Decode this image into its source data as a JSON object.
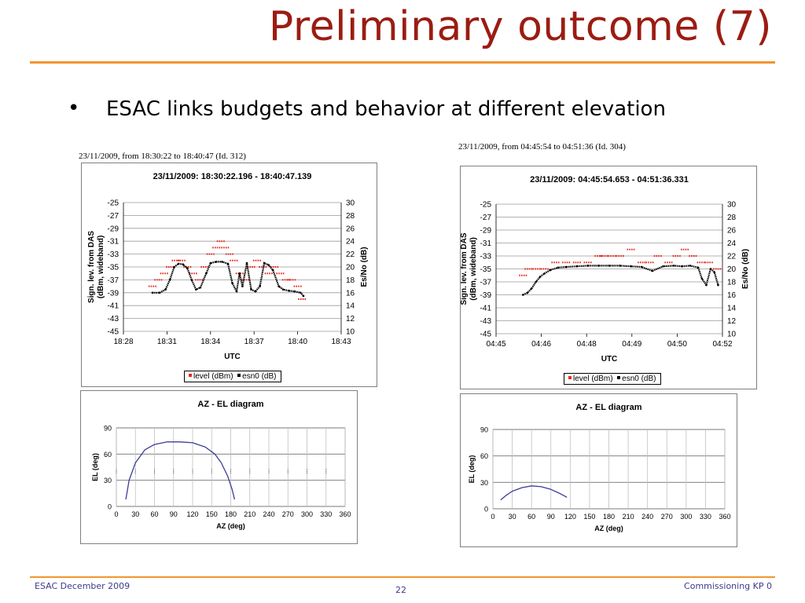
{
  "slide": {
    "title": "Preliminary outcome (7)",
    "bullet_marker": "•",
    "bullet_text": "ESAC links budgets and behavior at different elevation",
    "footer_left": "ESAC December 2009",
    "footer_center": "22",
    "footer_right": "Commissioning KP 0",
    "accent_color": "#f0962e",
    "title_color": "#9b1c12"
  },
  "captions": {
    "left": "23/11/2009, from 18:30:22 to 18:40:47 (Id. 312)",
    "right": "23/11/2009, from 04:45:54 to 04:51:36 (Id. 304)"
  },
  "chart_data": [
    {
      "type": "scatter",
      "title": "23/11/2009: 18:30:22.196 - 18:40:47.139",
      "xlabel": "UTC",
      "ylabel": [
        "Sign. lev. from DAS",
        "(dBm, wideband)"
      ],
      "y2label": "Es/No (dB)",
      "x_ticks": [
        "18:28",
        "18:31",
        "18:34",
        "18:37",
        "18:40",
        "18:43"
      ],
      "x_range_min": [
        28,
        43
      ],
      "ylim": [
        -45,
        -25
      ],
      "y_ticks": [
        -25,
        -27,
        -29,
        -31,
        -33,
        -35,
        -37,
        -39,
        -41,
        -43,
        -45
      ],
      "y2lim": [
        10,
        30
      ],
      "y2_ticks": [
        30,
        28,
        26,
        24,
        22,
        20,
        18,
        16,
        14,
        12,
        10
      ],
      "grid": true,
      "legend": [
        "level (dBm)",
        "esn0 (dB)"
      ],
      "legend_position": "bottom",
      "series": [
        {
          "name": "level (dBm)",
          "axis": "left",
          "color": "#e8281e",
          "style": "dash-marks",
          "x": [
            30.0,
            30.4,
            30.8,
            31.2,
            31.6,
            32.0,
            32.4,
            32.8,
            33.2,
            33.6,
            34.0,
            34.4,
            34.7,
            35.0,
            35.3,
            35.6,
            36.0,
            36.4,
            36.8,
            37.2,
            37.6,
            38.0,
            38.4,
            38.8,
            39.2,
            39.6,
            40.0,
            40.3
          ],
          "y": [
            -38,
            -37,
            -36,
            -35,
            -34,
            -34,
            -35,
            -36,
            -37,
            -35,
            -33,
            -32,
            -31,
            -32,
            -33,
            -34,
            -36,
            -37,
            -35,
            -34,
            -35,
            -36,
            -35,
            -36,
            -37,
            -37,
            -38,
            -40
          ]
        },
        {
          "name": "esn0 (dB)",
          "axis": "right",
          "color": "#000000",
          "style": "dots",
          "x": [
            30.0,
            30.5,
            30.9,
            31.2,
            31.5,
            31.8,
            32.1,
            32.4,
            32.7,
            33.0,
            33.3,
            33.7,
            34.0,
            34.4,
            34.8,
            35.2,
            35.5,
            35.8,
            36.0,
            36.2,
            36.5,
            36.8,
            37.1,
            37.4,
            37.7,
            38.0,
            38.3,
            38.7,
            39.0,
            39.4,
            39.8,
            40.2,
            40.4
          ],
          "y": [
            16,
            16,
            16.5,
            18,
            20,
            20.5,
            20.4,
            19.8,
            18,
            16.5,
            16.8,
            19,
            20.6,
            20.8,
            20.8,
            20.5,
            17.5,
            16.2,
            19,
            17,
            20.6,
            16.5,
            16.2,
            17,
            20.6,
            20.3,
            19.5,
            17,
            16.5,
            16.3,
            16.2,
            16,
            15.5
          ]
        }
      ]
    },
    {
      "type": "scatter",
      "title": "23/11/2009: 04:45:54.653 - 04:51:36.331",
      "xlabel": "UTC",
      "ylabel": [
        "Sign. lev. from DAS",
        "(dBm, wideband)"
      ],
      "y2label": "Es/No (dB)",
      "x_ticks": [
        "04:45",
        "04:46",
        "04:48",
        "04:49",
        "04:50",
        "04:52"
      ],
      "x_range_sec": [
        0,
        420
      ],
      "ylim": [
        -45,
        -25
      ],
      "y_ticks": [
        -25,
        -27,
        -29,
        -31,
        -33,
        -35,
        -37,
        -39,
        -41,
        -43,
        -45
      ],
      "y2lim": [
        10,
        30
      ],
      "y2_ticks": [
        30,
        28,
        26,
        24,
        22,
        20,
        18,
        16,
        14,
        12,
        10
      ],
      "grid": true,
      "legend": [
        "level (dBm)",
        "esn0 (dB)"
      ],
      "legend_position": "bottom",
      "series": [
        {
          "name": "level (dBm)",
          "axis": "left",
          "color": "#e8281e",
          "style": "dash-marks",
          "x": [
            50,
            60,
            75,
            90,
            110,
            130,
            150,
            170,
            190,
            200,
            215,
            230,
            250,
            270,
            285,
            300,
            320,
            335,
            350,
            365,
            380,
            395,
            410
          ],
          "y": [
            -36,
            -35,
            -35,
            -35,
            -34,
            -34,
            -34,
            -34,
            -33,
            -33,
            -33,
            -33,
            -32,
            -34,
            -34,
            -33,
            -34,
            -33,
            -32,
            -33,
            -34,
            -34,
            -35
          ]
        },
        {
          "name": "esn0 (dB)",
          "axis": "right",
          "color": "#000000",
          "style": "dots",
          "x": [
            50,
            58,
            66,
            74,
            82,
            90,
            100,
            115,
            130,
            150,
            170,
            190,
            210,
            230,
            250,
            270,
            290,
            310,
            330,
            345,
            360,
            375,
            382,
            390,
            398,
            405,
            412
          ],
          "y": [
            16,
            16.3,
            17,
            18,
            18.8,
            19.3,
            19.8,
            20.2,
            20.3,
            20.4,
            20.5,
            20.5,
            20.5,
            20.5,
            20.4,
            20.3,
            19.7,
            20.4,
            20.5,
            20.4,
            20.5,
            20.2,
            18.5,
            17.5,
            20,
            19.5,
            17.5
          ]
        }
      ]
    },
    {
      "type": "line",
      "title": "AZ - EL diagram",
      "xlabel": "AZ (deg)",
      "ylabel": "EL (deg)",
      "xlim": [
        0,
        360
      ],
      "x_ticks": [
        0,
        30,
        60,
        90,
        120,
        150,
        180,
        210,
        240,
        270,
        300,
        330,
        360
      ],
      "ylim": [
        0,
        90
      ],
      "y_ticks": [
        0,
        30,
        60,
        90
      ],
      "grid": true,
      "series": [
        {
          "name": "",
          "color": "#3c3c96",
          "x": [
            15,
            20,
            30,
            45,
            60,
            80,
            100,
            120,
            140,
            155,
            165,
            175,
            182,
            186
          ],
          "y": [
            8,
            30,
            50,
            65,
            71,
            74,
            74,
            73,
            68,
            60,
            50,
            35,
            20,
            8
          ]
        },
        {
          "name": "",
          "color": "#555555",
          "style": "dots",
          "x": [
            0,
            30,
            60,
            90,
            120,
            150,
            180,
            210,
            240,
            270,
            300,
            330
          ],
          "y": [
            40,
            40,
            40,
            40,
            40,
            40,
            40,
            40,
            40,
            40,
            40,
            40
          ]
        }
      ]
    },
    {
      "type": "line",
      "title": "AZ - EL diagram",
      "xlabel": "AZ (deg)",
      "ylabel": "EL (deg)",
      "xlim": [
        0,
        360
      ],
      "x_ticks": [
        0,
        30,
        60,
        90,
        120,
        150,
        180,
        210,
        240,
        270,
        300,
        330,
        360
      ],
      "ylim": [
        0,
        90
      ],
      "y_ticks": [
        0,
        30,
        60,
        90
      ],
      "grid": true,
      "series": [
        {
          "name": "",
          "color": "#3c3c96",
          "x": [
            12,
            20,
            30,
            45,
            60,
            75,
            90,
            105,
            115
          ],
          "y": [
            10,
            15,
            20,
            24,
            26,
            25,
            22,
            17,
            13
          ]
        }
      ]
    }
  ]
}
